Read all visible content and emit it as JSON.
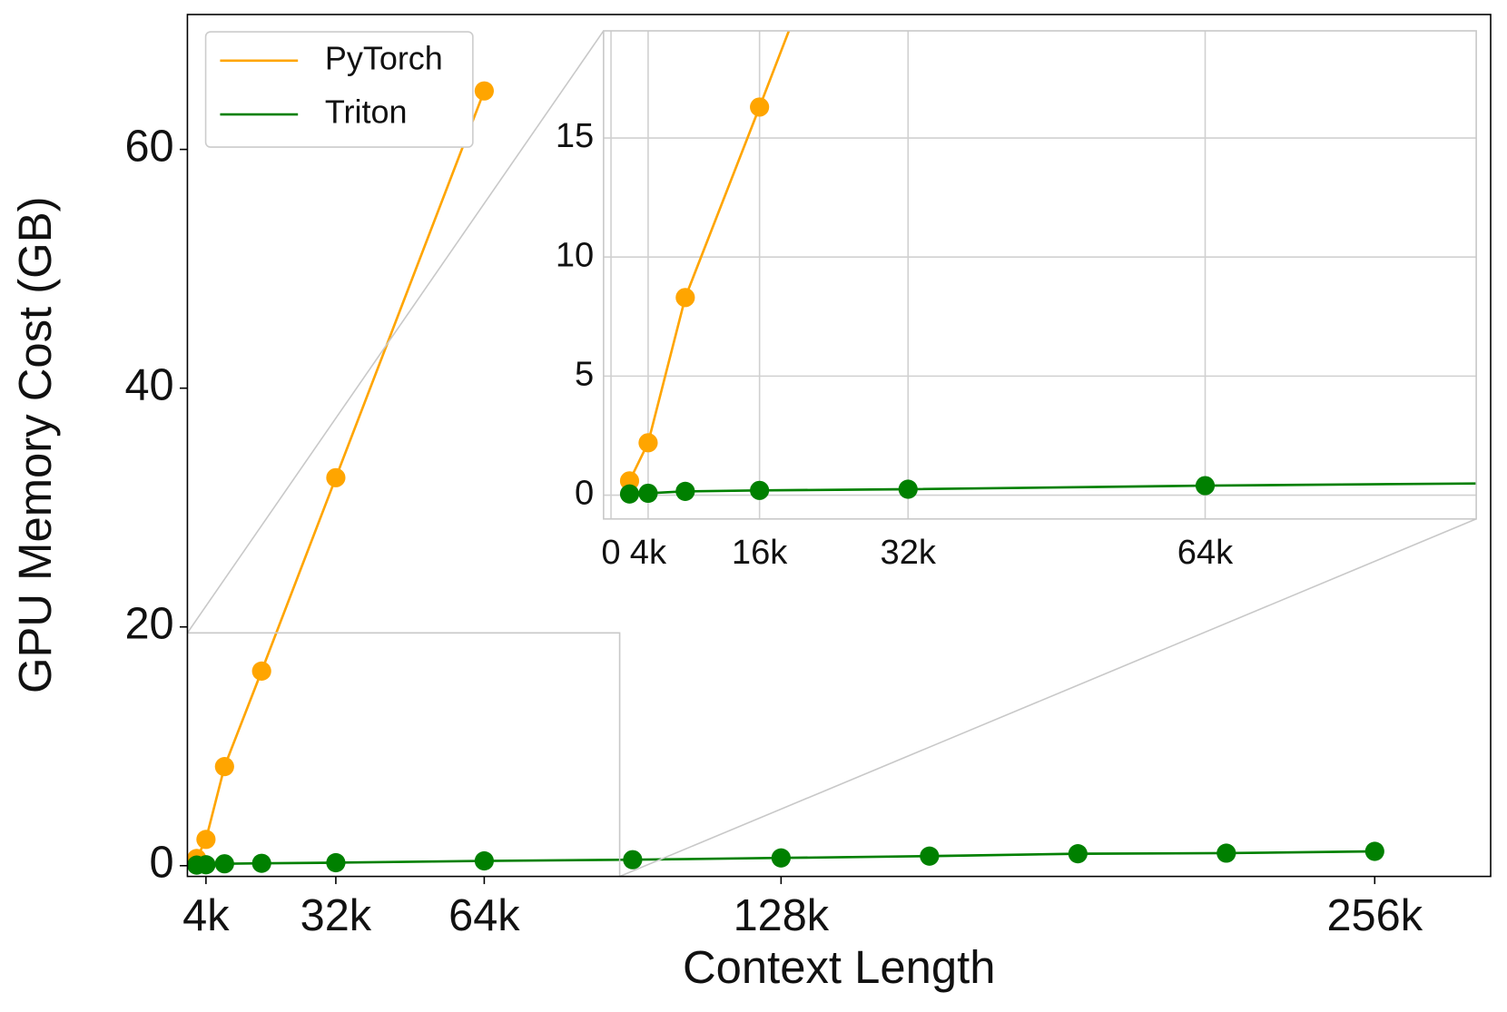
{
  "chart_data": {
    "type": "line",
    "x_label": "Context Length",
    "y_label": "GPU Memory Cost (GB)",
    "xlim": [
      0,
      281
    ],
    "ylim": [
      -0.9,
      71.3
    ],
    "xticks": [
      {
        "value": 4,
        "label": "4k"
      },
      {
        "value": 32,
        "label": "32k"
      },
      {
        "value": 64,
        "label": "64k"
      },
      {
        "value": 128,
        "label": "128k"
      },
      {
        "value": 256,
        "label": "256k"
      }
    ],
    "yticks": [
      0,
      20,
      40,
      60
    ],
    "grid": false,
    "legend": "upper left",
    "series": [
      {
        "name": "PyTorch",
        "color": "#ffa500",
        "x": [
          2,
          4,
          8,
          16,
          32,
          64
        ],
        "values": [
          0.6,
          2.2,
          8.3,
          16.3,
          32.5,
          64.9
        ]
      },
      {
        "name": "Triton",
        "color": "#008000",
        "x": [
          2,
          4,
          8,
          16,
          32,
          64,
          96,
          128,
          160,
          192,
          224,
          256
        ],
        "values": [
          0.05,
          0.08,
          0.16,
          0.2,
          0.25,
          0.4,
          0.5,
          0.65,
          0.8,
          1.0,
          1.05,
          1.2
        ]
      }
    ],
    "inset": {
      "xlim": [
        -0.8,
        93.2
      ],
      "ylim": [
        -1,
        19.5
      ],
      "xticks": [
        0,
        {
          "value": 4,
          "label": "4k"
        },
        {
          "value": 16,
          "label": "16k"
        },
        {
          "value": 32,
          "label": "32k"
        },
        {
          "value": 64,
          "label": "64k"
        }
      ],
      "yticks": [
        0,
        5,
        10,
        15
      ],
      "grid": true
    }
  }
}
